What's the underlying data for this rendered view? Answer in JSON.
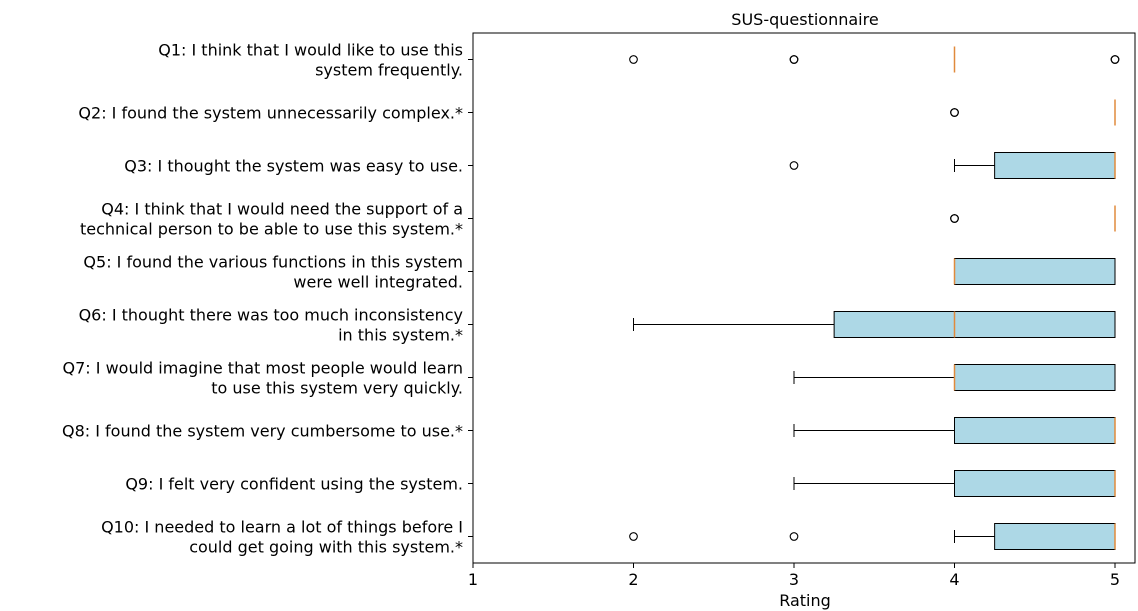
{
  "chart_data": {
    "type": "boxplot",
    "title": "SUS-questionnaire",
    "xlabel": "Rating",
    "ylabel": "",
    "xlim": [
      1,
      5.0
    ],
    "xticks": [
      1,
      2,
      3,
      4,
      5
    ],
    "grid": false,
    "colors": {
      "box_fill": "#add8e6",
      "median": "#e08a3c",
      "edge": "#000000"
    },
    "categories": [
      {
        "id": "Q1",
        "label_lines": [
          "Q1: I think that I would like to use this",
          "system frequently."
        ],
        "q1": 4,
        "median": 4,
        "q3": 4,
        "whisker_low": 4,
        "whisker_high": 4,
        "outliers": [
          2,
          3,
          3,
          5,
          5
        ]
      },
      {
        "id": "Q2",
        "label_lines": [
          "Q2: I found the system unnecessarily complex.*"
        ],
        "q1": 5,
        "median": 5,
        "q3": 5,
        "whisker_low": 5,
        "whisker_high": 5,
        "outliers": [
          4,
          4
        ]
      },
      {
        "id": "Q3",
        "label_lines": [
          "Q3: I thought the system was easy to use."
        ],
        "q1": 4.25,
        "median": 5,
        "q3": 5,
        "whisker_low": 4,
        "whisker_high": 5,
        "outliers": [
          3
        ]
      },
      {
        "id": "Q4",
        "label_lines": [
          "Q4: I think that I would need the support of a",
          "technical person to be able to use this system.*"
        ],
        "q1": 5,
        "median": 5,
        "q3": 5,
        "whisker_low": 5,
        "whisker_high": 5,
        "outliers": [
          4,
          4
        ]
      },
      {
        "id": "Q5",
        "label_lines": [
          "Q5: I found the various functions in this system",
          "were well integrated."
        ],
        "q1": 4,
        "median": 4,
        "q3": 5,
        "whisker_low": 4,
        "whisker_high": 5,
        "outliers": []
      },
      {
        "id": "Q6",
        "label_lines": [
          "Q6: I thought there was too much inconsistency",
          "in this system.*"
        ],
        "q1": 3.25,
        "median": 4,
        "q3": 5,
        "whisker_low": 2,
        "whisker_high": 5,
        "outliers": []
      },
      {
        "id": "Q7",
        "label_lines": [
          "Q7: I would imagine that most people would learn",
          "to use this system very quickly."
        ],
        "q1": 4,
        "median": 4,
        "q3": 5,
        "whisker_low": 3,
        "whisker_high": 5,
        "outliers": []
      },
      {
        "id": "Q8",
        "label_lines": [
          "Q8: I found the system very cumbersome to use.*"
        ],
        "q1": 4,
        "median": 5,
        "q3": 5,
        "whisker_low": 3,
        "whisker_high": 5,
        "outliers": []
      },
      {
        "id": "Q9",
        "label_lines": [
          "Q9: I felt very confident using the system."
        ],
        "q1": 4,
        "median": 5,
        "q3": 5,
        "whisker_low": 3,
        "whisker_high": 5,
        "outliers": []
      },
      {
        "id": "Q10",
        "label_lines": [
          "Q10: I needed to learn a lot of things before I",
          "could get going with this system.*"
        ],
        "q1": 4.25,
        "median": 5,
        "q3": 5,
        "whisker_low": 4,
        "whisker_high": 5,
        "outliers": [
          2,
          3
        ]
      }
    ]
  }
}
